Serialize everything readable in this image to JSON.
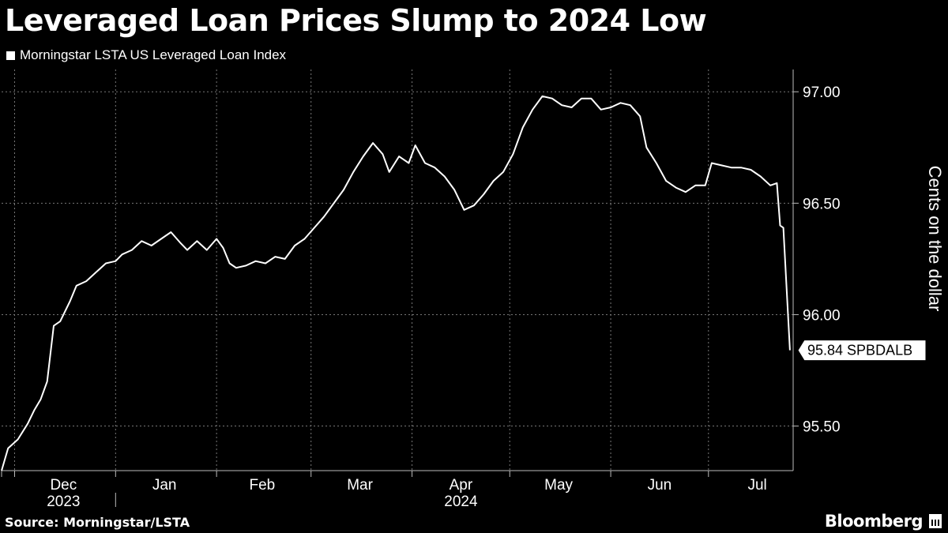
{
  "chart_data": {
    "type": "line",
    "title": "Leveraged Loan Prices Slump to 2024 Low",
    "ylabel": "Cents on the dollar",
    "source": "Source: Morningstar/LSTA",
    "brand": "Bloomberg",
    "ylim": [
      95.3,
      97.1
    ],
    "yticks": [
      "95.50",
      "96.00",
      "96.50",
      "97.00"
    ],
    "ytick_values": [
      95.5,
      96.0,
      96.5,
      97.0
    ],
    "xlim": [
      "2023-11-27",
      "2024-07-27"
    ],
    "month_labels": [
      "Dec",
      "Jan",
      "Feb",
      "Mar",
      "Apr",
      "May",
      "Jun",
      "Jul"
    ],
    "month_centers": [
      "2023-12-16",
      "2024-01-16",
      "2024-02-15",
      "2024-03-16",
      "2024-04-16",
      "2024-05-16",
      "2024-06-16",
      "2024-07-16"
    ],
    "month_boundaries": [
      "2023-12-01",
      "2024-01-01",
      "2024-02-01",
      "2024-03-01",
      "2024-04-01",
      "2024-05-01",
      "2024-06-01",
      "2024-07-01"
    ],
    "year_labels": [
      {
        "label": "2023",
        "center": "2023-12-16"
      },
      {
        "label": "2024",
        "center": "2024-04-16"
      }
    ],
    "grid": true,
    "last_value_label": "95.84 SPBDALB",
    "series": [
      {
        "name": "Morningstar LSTA US Leveraged Loan Index",
        "color": "#ffffff",
        "points": [
          [
            "2023-11-27",
            95.3
          ],
          [
            "2023-11-29",
            95.4
          ],
          [
            "2023-12-02",
            95.44
          ],
          [
            "2023-12-05",
            95.51
          ],
          [
            "2023-12-07",
            95.57
          ],
          [
            "2023-12-09",
            95.62
          ],
          [
            "2023-12-11",
            95.7
          ],
          [
            "2023-12-13",
            95.95
          ],
          [
            "2023-12-15",
            95.97
          ],
          [
            "2023-12-18",
            96.06
          ],
          [
            "2023-12-20",
            96.13
          ],
          [
            "2023-12-23",
            96.15
          ],
          [
            "2023-12-26",
            96.19
          ],
          [
            "2023-12-29",
            96.23
          ],
          [
            "2024-01-01",
            96.24
          ],
          [
            "2024-01-03",
            96.27
          ],
          [
            "2024-01-06",
            96.29
          ],
          [
            "2024-01-09",
            96.33
          ],
          [
            "2024-01-12",
            96.31
          ],
          [
            "2024-01-15",
            96.34
          ],
          [
            "2024-01-18",
            96.37
          ],
          [
            "2024-01-21",
            96.32
          ],
          [
            "2024-01-23",
            96.29
          ],
          [
            "2024-01-26",
            96.33
          ],
          [
            "2024-01-29",
            96.29
          ],
          [
            "2024-02-01",
            96.34
          ],
          [
            "2024-02-03",
            96.3
          ],
          [
            "2024-02-05",
            96.23
          ],
          [
            "2024-02-07",
            96.21
          ],
          [
            "2024-02-10",
            96.22
          ],
          [
            "2024-02-13",
            96.24
          ],
          [
            "2024-02-16",
            96.23
          ],
          [
            "2024-02-19",
            96.26
          ],
          [
            "2024-02-22",
            96.25
          ],
          [
            "2024-02-25",
            96.31
          ],
          [
            "2024-02-28",
            96.34
          ],
          [
            "2024-03-02",
            96.39
          ],
          [
            "2024-03-05",
            96.44
          ],
          [
            "2024-03-08",
            96.5
          ],
          [
            "2024-03-11",
            96.56
          ],
          [
            "2024-03-14",
            96.64
          ],
          [
            "2024-03-17",
            96.71
          ],
          [
            "2024-03-20",
            96.77
          ],
          [
            "2024-03-23",
            96.72
          ],
          [
            "2024-03-25",
            96.64
          ],
          [
            "2024-03-28",
            96.71
          ],
          [
            "2024-03-31",
            96.68
          ],
          [
            "2024-04-02",
            96.76
          ],
          [
            "2024-04-05",
            96.68
          ],
          [
            "2024-04-08",
            96.66
          ],
          [
            "2024-04-11",
            96.62
          ],
          [
            "2024-04-14",
            96.56
          ],
          [
            "2024-04-17",
            96.47
          ],
          [
            "2024-04-20",
            96.49
          ],
          [
            "2024-04-23",
            96.54
          ],
          [
            "2024-04-26",
            96.6
          ],
          [
            "2024-04-29",
            96.64
          ],
          [
            "2024-05-02",
            96.72
          ],
          [
            "2024-05-05",
            96.84
          ],
          [
            "2024-05-08",
            96.92
          ],
          [
            "2024-05-11",
            96.98
          ],
          [
            "2024-05-14",
            96.97
          ],
          [
            "2024-05-17",
            96.94
          ],
          [
            "2024-05-20",
            96.93
          ],
          [
            "2024-05-23",
            96.97
          ],
          [
            "2024-05-26",
            96.97
          ],
          [
            "2024-05-29",
            96.92
          ],
          [
            "2024-06-01",
            96.93
          ],
          [
            "2024-06-04",
            96.95
          ],
          [
            "2024-06-07",
            96.94
          ],
          [
            "2024-06-10",
            96.89
          ],
          [
            "2024-06-12",
            96.75
          ],
          [
            "2024-06-15",
            96.68
          ],
          [
            "2024-06-18",
            96.6
          ],
          [
            "2024-06-21",
            96.57
          ],
          [
            "2024-06-24",
            96.55
          ],
          [
            "2024-06-27",
            96.58
          ],
          [
            "2024-06-30",
            96.58
          ],
          [
            "2024-07-02",
            96.68
          ],
          [
            "2024-07-05",
            96.67
          ],
          [
            "2024-07-08",
            96.66
          ],
          [
            "2024-07-11",
            96.66
          ],
          [
            "2024-07-14",
            96.65
          ],
          [
            "2024-07-17",
            96.62
          ],
          [
            "2024-07-20",
            96.58
          ],
          [
            "2024-07-22",
            96.59
          ],
          [
            "2024-07-23",
            96.4
          ],
          [
            "2024-07-24",
            96.39
          ],
          [
            "2024-07-26",
            95.84
          ]
        ]
      }
    ]
  }
}
